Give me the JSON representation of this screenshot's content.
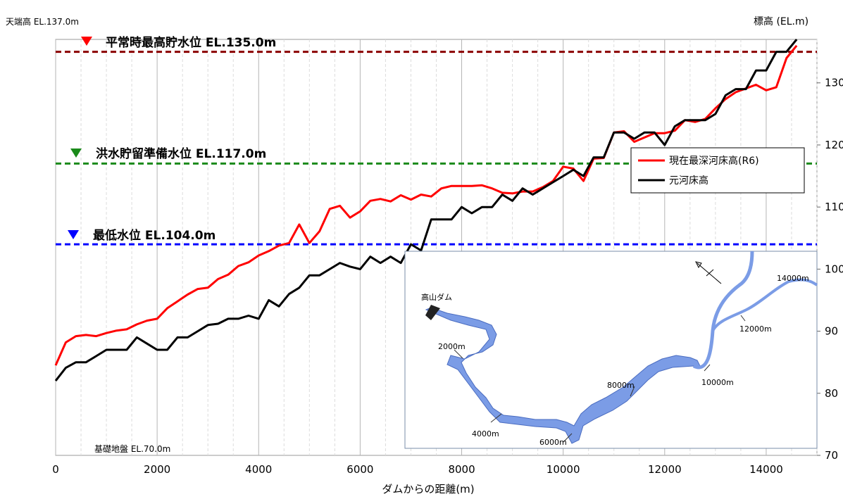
{
  "chart_data": {
    "type": "line",
    "title": "",
    "xlabel": "ダムからの距離(m)",
    "ylabel": "標高 (EL.m)",
    "xlim": [
      0,
      15000
    ],
    "ylim": [
      70,
      137
    ],
    "x_ticks": [
      0,
      2000,
      4000,
      6000,
      8000,
      10000,
      12000,
      14000
    ],
    "y_ticks": [
      70,
      80,
      90,
      100,
      110,
      120,
      130
    ],
    "grid": "vertical",
    "legend_position": "right-middle",
    "series": [
      {
        "name": "現在最深河床高(R6)",
        "color": "#ff0000",
        "x": [
          0,
          200,
          400,
          600,
          800,
          1000,
          1200,
          1400,
          1600,
          1800,
          2000,
          2200,
          2400,
          2600,
          2800,
          3000,
          3200,
          3400,
          3600,
          3800,
          4000,
          4200,
          4400,
          4600,
          4800,
          5000,
          5200,
          5400,
          5600,
          5800,
          6000,
          6200,
          6400,
          6600,
          6800,
          7000,
          7200,
          7400,
          7600,
          7800,
          8000,
          8200,
          8400,
          8600,
          8800,
          9000,
          9200,
          9400,
          9600,
          9800,
          10000,
          10200,
          10400,
          10600,
          10800,
          11000,
          11200,
          11400,
          11600,
          11800,
          12000,
          12200,
          12400,
          12600,
          12800,
          13000,
          13200,
          13400,
          13600,
          13800,
          14000,
          14200,
          14400,
          14600
        ],
        "values": [
          84.5,
          88.2,
          89.2,
          89.4,
          89.2,
          89.7,
          90.1,
          90.3,
          91.1,
          91.7,
          92.0,
          93.7,
          94.8,
          95.9,
          96.8,
          97.0,
          98.4,
          99.1,
          100.5,
          101.1,
          102.2,
          102.9,
          103.8,
          104.2,
          107.2,
          104.2,
          106.1,
          109.7,
          110.2,
          108.3,
          109.3,
          111.0,
          111.3,
          110.9,
          111.9,
          111.2,
          112.0,
          111.7,
          113.0,
          113.4,
          113.4,
          113.4,
          113.5,
          113.0,
          112.3,
          112.2,
          112.5,
          112.5,
          113.2,
          114.2,
          116.5,
          116.2,
          114.2,
          117.8,
          117.9,
          122.0,
          122.2,
          120.5,
          121.2,
          121.9,
          121.9,
          122.3,
          124.0,
          123.7,
          124.2,
          125.9,
          127.4,
          128.5,
          129.1,
          129.7,
          128.8,
          129.3,
          134.0,
          136.0
        ]
      },
      {
        "name": "元河床高",
        "color": "#000000",
        "x": [
          0,
          200,
          400,
          600,
          800,
          1000,
          1200,
          1400,
          1600,
          1800,
          2000,
          2200,
          2400,
          2600,
          2800,
          3000,
          3200,
          3400,
          3600,
          3800,
          4000,
          4200,
          4400,
          4600,
          4800,
          5000,
          5200,
          5400,
          5600,
          5800,
          6000,
          6200,
          6400,
          6600,
          6800,
          7000,
          7200,
          7400,
          7600,
          7800,
          8000,
          8200,
          8400,
          8600,
          8800,
          9000,
          9200,
          9400,
          9600,
          9800,
          10000,
          10200,
          10400,
          10600,
          10800,
          11000,
          11200,
          11400,
          11600,
          11800,
          12000,
          12200,
          12400,
          12600,
          12800,
          13000,
          13200,
          13400,
          13600,
          13800,
          14000,
          14200,
          14400,
          14600
        ],
        "values": [
          82.0,
          84.1,
          85.0,
          85.0,
          86.0,
          87.0,
          87.0,
          87.0,
          89.0,
          88.0,
          87.0,
          87.0,
          89.0,
          89.0,
          90.0,
          91.0,
          91.2,
          92.0,
          92.0,
          92.5,
          92.0,
          95.0,
          94.0,
          96.0,
          97.0,
          99.0,
          99.0,
          100.0,
          101.0,
          100.4,
          100.0,
          102.0,
          101.0,
          102.0,
          101.0,
          104.0,
          103.0,
          108.0,
          108.0,
          108.0,
          110.0,
          109.0,
          110.0,
          110.0,
          112.0,
          111.0,
          113.0,
          112.0,
          113.0,
          114.0,
          115.0,
          116.0,
          115.0,
          118.0,
          118.0,
          122.0,
          122.0,
          121.0,
          122.0,
          122.0,
          120.0,
          123.0,
          124.0,
          124.0,
          124.0,
          125.0,
          128.0,
          129.0,
          129.0,
          132.0,
          132.0,
          135.0,
          135.0,
          137.0
        ]
      }
    ],
    "reference_lines": [
      {
        "label": "平常時最高貯水位 EL.135.0m",
        "y": 135.0,
        "color": "#8b0000",
        "marker_color": "#ff0000"
      },
      {
        "label": "洪水貯留準備水位 EL.117.0m",
        "y": 117.0,
        "color": "#1a8a1a",
        "marker_color": "#1a8a1a"
      },
      {
        "label": "最低水位 EL.104.0m",
        "y": 104.0,
        "color": "#0000ff",
        "marker_color": "#0000ff"
      }
    ],
    "annotations": {
      "crest": "天端高 EL.137.0m",
      "foundation": "基礎地盤 EL.70.0m"
    }
  },
  "inset_map": {
    "dam_label": "高山ダム",
    "distance_labels": [
      "2000m",
      "4000m",
      "6000m",
      "8000m",
      "10000m",
      "12000m",
      "14000m"
    ],
    "river_color": "#7b9ce6"
  }
}
